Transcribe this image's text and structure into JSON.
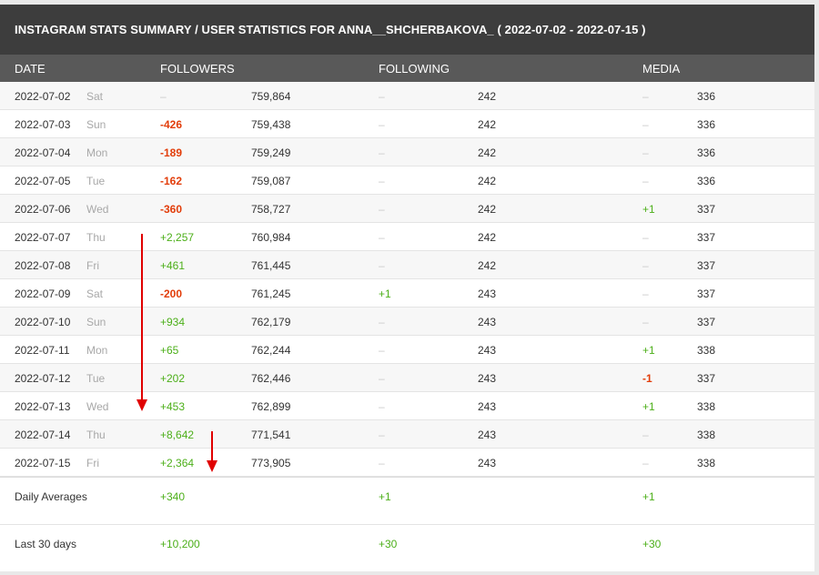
{
  "title": "INSTAGRAM STATS SUMMARY / USER STATISTICS FOR ANNA__SHCHERBAKOVA_ ( 2022-07-02 - 2022-07-15 )",
  "columns": {
    "date": "DATE",
    "followers": "FOLLOWERS",
    "following": "FOLLOWING",
    "media": "MEDIA"
  },
  "rows": [
    {
      "date": "2022-07-02",
      "day": "Sat",
      "f_delta": "–",
      "f_total": "759,864",
      "g_delta": "–",
      "g_total": "242",
      "m_delta": "–",
      "m_total": "336"
    },
    {
      "date": "2022-07-03",
      "day": "Sun",
      "f_delta": "-426",
      "f_total": "759,438",
      "g_delta": "–",
      "g_total": "242",
      "m_delta": "–",
      "m_total": "336"
    },
    {
      "date": "2022-07-04",
      "day": "Mon",
      "f_delta": "-189",
      "f_total": "759,249",
      "g_delta": "–",
      "g_total": "242",
      "m_delta": "–",
      "m_total": "336"
    },
    {
      "date": "2022-07-05",
      "day": "Tue",
      "f_delta": "-162",
      "f_total": "759,087",
      "g_delta": "–",
      "g_total": "242",
      "m_delta": "–",
      "m_total": "336"
    },
    {
      "date": "2022-07-06",
      "day": "Wed",
      "f_delta": "-360",
      "f_total": "758,727",
      "g_delta": "–",
      "g_total": "242",
      "m_delta": "+1",
      "m_total": "337"
    },
    {
      "date": "2022-07-07",
      "day": "Thu",
      "f_delta": "+2,257",
      "f_total": "760,984",
      "g_delta": "–",
      "g_total": "242",
      "m_delta": "–",
      "m_total": "337"
    },
    {
      "date": "2022-07-08",
      "day": "Fri",
      "f_delta": "+461",
      "f_total": "761,445",
      "g_delta": "–",
      "g_total": "242",
      "m_delta": "–",
      "m_total": "337"
    },
    {
      "date": "2022-07-09",
      "day": "Sat",
      "f_delta": "-200",
      "f_total": "761,245",
      "g_delta": "+1",
      "g_total": "243",
      "m_delta": "–",
      "m_total": "337"
    },
    {
      "date": "2022-07-10",
      "day": "Sun",
      "f_delta": "+934",
      "f_total": "762,179",
      "g_delta": "–",
      "g_total": "243",
      "m_delta": "–",
      "m_total": "337"
    },
    {
      "date": "2022-07-11",
      "day": "Mon",
      "f_delta": "+65",
      "f_total": "762,244",
      "g_delta": "–",
      "g_total": "243",
      "m_delta": "+1",
      "m_total": "338"
    },
    {
      "date": "2022-07-12",
      "day": "Tue",
      "f_delta": "+202",
      "f_total": "762,446",
      "g_delta": "–",
      "g_total": "243",
      "m_delta": "-1",
      "m_total": "337"
    },
    {
      "date": "2022-07-13",
      "day": "Wed",
      "f_delta": "+453",
      "f_total": "762,899",
      "g_delta": "–",
      "g_total": "243",
      "m_delta": "+1",
      "m_total": "338"
    },
    {
      "date": "2022-07-14",
      "day": "Thu",
      "f_delta": "+8,642",
      "f_total": "771,541",
      "g_delta": "–",
      "g_total": "243",
      "m_delta": "–",
      "m_total": "338"
    },
    {
      "date": "2022-07-15",
      "day": "Fri",
      "f_delta": "+2,364",
      "f_total": "773,905",
      "g_delta": "–",
      "g_total": "243",
      "m_delta": "–",
      "m_total": "338"
    }
  ],
  "daily_averages": {
    "label": "Daily Averages",
    "followers": "+340",
    "following": "+1",
    "media": "+1"
  },
  "last_30_days": {
    "label": "Last 30 days",
    "followers": "+10,200",
    "following": "+30",
    "media": "+30"
  },
  "colors": {
    "title_bg": "#3d3d3d",
    "header_bg": "#595959",
    "positive": "#4caf19",
    "negative": "#e23d0a",
    "annotation_arrow": "#e00000"
  }
}
